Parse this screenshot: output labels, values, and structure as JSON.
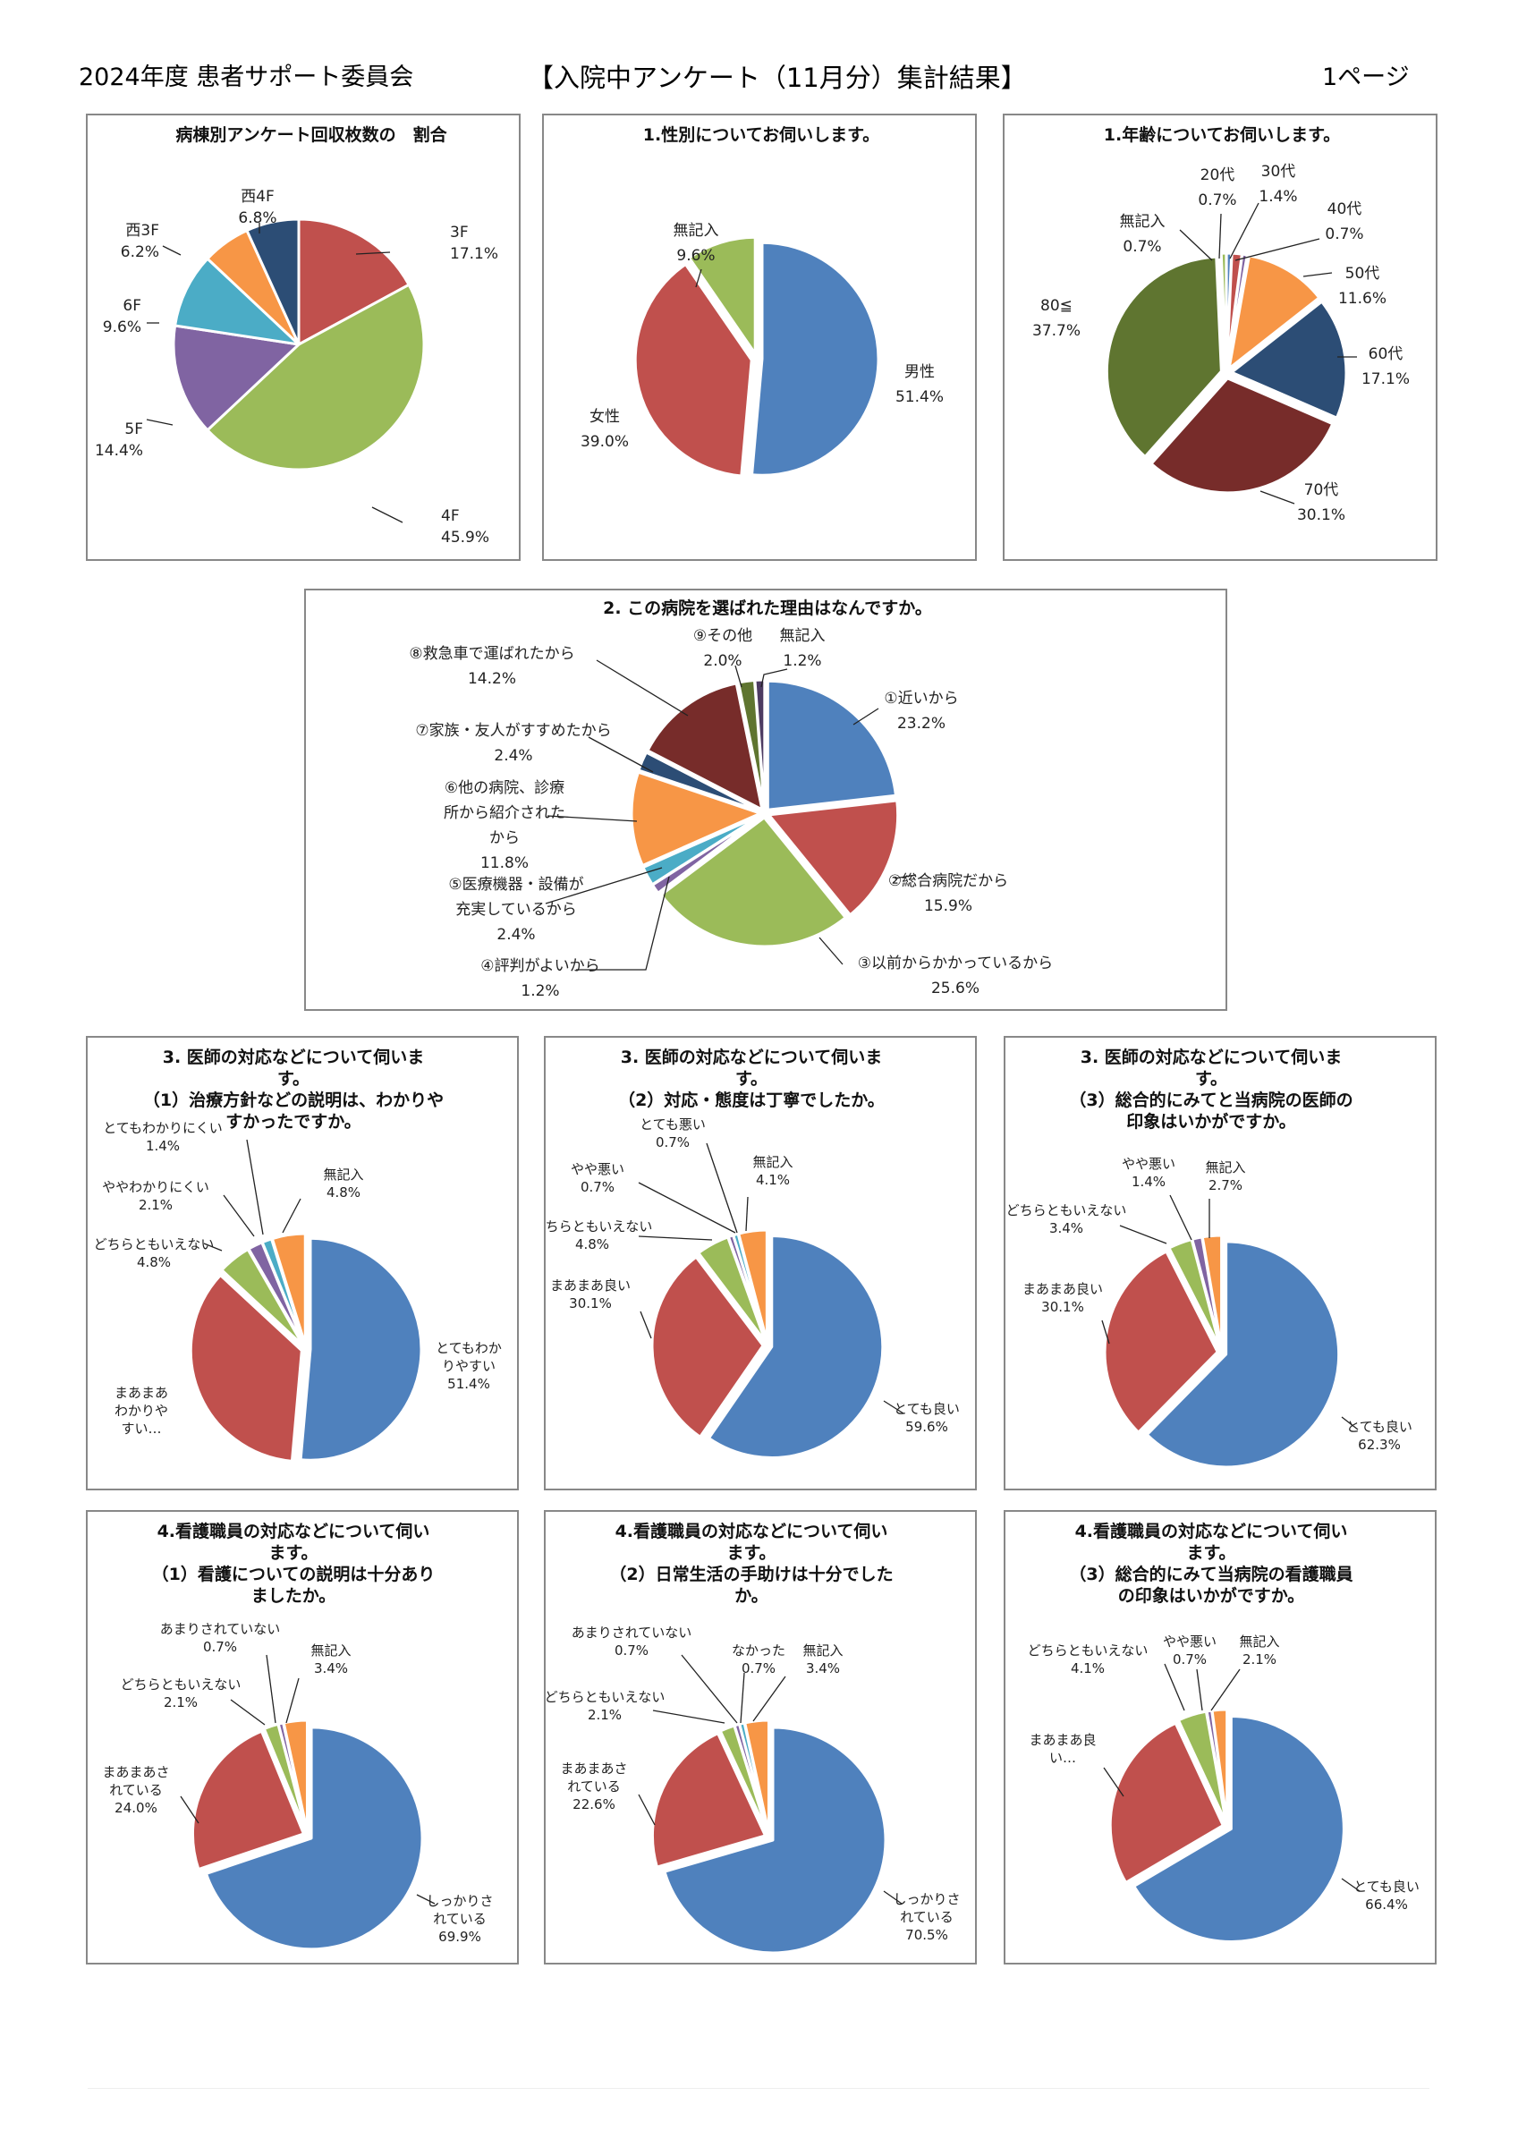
{
  "header": {
    "left": "2024年度 患者サポート委員会",
    "center": "【入院中アンケート（11月分）集計結果】",
    "right": "1ページ"
  },
  "colors": [
    "#4F81BD",
    "#C0504D",
    "#9BBB59",
    "#8064A2",
    "#4BACC6",
    "#F79646",
    "#2C4D75",
    "#772C2A",
    "#5F7530"
  ],
  "chart_data": [
    {
      "type": "pie",
      "title": [
        "病棟別アンケート回収枚数の　割合"
      ],
      "slices": [
        {
          "label": [
            "3F"
          ],
          "value": 17.1,
          "pct": "17.1%",
          "color": "#C0504D"
        },
        {
          "label": [
            "4F"
          ],
          "value": 45.9,
          "pct": "45.9%",
          "color": "#9BBB59"
        },
        {
          "label": [
            "5F"
          ],
          "value": 14.4,
          "pct": "14.4%",
          "color": "#8064A2"
        },
        {
          "label": [
            "6F"
          ],
          "value": 9.6,
          "pct": "9.6%",
          "color": "#4BACC6"
        },
        {
          "label": [
            "西3F"
          ],
          "value": 6.2,
          "pct": "6.2%",
          "color": "#F79646"
        },
        {
          "label": [
            "西4F"
          ],
          "value": 6.8,
          "pct": "6.8%",
          "color": "#2C4D75"
        }
      ]
    },
    {
      "type": "pie",
      "title": [
        "1.性別についてお伺いします。"
      ],
      "slices": [
        {
          "label": [
            "男性"
          ],
          "value": 51.4,
          "pct": "51.4%",
          "color": "#4F81BD"
        },
        {
          "label": [
            "女性"
          ],
          "value": 39.0,
          "pct": "39.0%",
          "color": "#C0504D"
        },
        {
          "label": [
            "無記入"
          ],
          "value": 9.6,
          "pct": "9.6%",
          "color": "#9BBB59"
        }
      ]
    },
    {
      "type": "pie",
      "title": [
        "1.年齢についてお伺いします。"
      ],
      "slices": [
        {
          "label": [
            "20代"
          ],
          "value": 0.7,
          "pct": "0.7%",
          "color": "#4F81BD"
        },
        {
          "label": [
            "30代"
          ],
          "value": 1.4,
          "pct": "1.4%",
          "color": "#C0504D"
        },
        {
          "label": [
            "40代"
          ],
          "value": 0.7,
          "pct": "0.7%",
          "color": "#8064A2"
        },
        {
          "label": [
            "50代"
          ],
          "value": 11.6,
          "pct": "11.6%",
          "color": "#F79646"
        },
        {
          "label": [
            "60代"
          ],
          "value": 17.1,
          "pct": "17.1%",
          "color": "#2C4D75"
        },
        {
          "label": [
            "70代"
          ],
          "value": 30.1,
          "pct": "30.1%",
          "color": "#772C2A"
        },
        {
          "label": [
            "80≦"
          ],
          "value": 37.7,
          "pct": "37.7%",
          "color": "#5F7530"
        },
        {
          "label": [
            "無記入"
          ],
          "value": 0.7,
          "pct": "0.7%",
          "color": "#9BBB59"
        }
      ]
    },
    {
      "type": "pie",
      "title": [
        "2. この病院を選ばれた理由はなんですか。"
      ],
      "slices": [
        {
          "label": [
            "①近いから"
          ],
          "value": 23.2,
          "pct": "23.2%",
          "color": "#4F81BD"
        },
        {
          "label": [
            "②総合病院だから"
          ],
          "value": 15.9,
          "pct": "15.9%",
          "color": "#C0504D"
        },
        {
          "label": [
            "③以前からかかっているから"
          ],
          "value": 25.6,
          "pct": "25.6%",
          "color": "#9BBB59"
        },
        {
          "label": [
            "④評判がよいから"
          ],
          "value": 1.2,
          "pct": "1.2%",
          "color": "#8064A2"
        },
        {
          "label": [
            "⑤医療機器・設備が",
            "充実しているから"
          ],
          "value": 2.4,
          "pct": "2.4%",
          "color": "#4BACC6"
        },
        {
          "label": [
            "⑥他の病院、診療",
            "所から紹介された",
            "から"
          ],
          "value": 11.8,
          "pct": "11.8%",
          "color": "#F79646"
        },
        {
          "label": [
            "⑦家族・友人がすすめたから"
          ],
          "value": 2.4,
          "pct": "2.4%",
          "color": "#2C4D75"
        },
        {
          "label": [
            "⑧救急車で運ばれたから"
          ],
          "value": 14.2,
          "pct": "14.2%",
          "color": "#772C2A"
        },
        {
          "label": [
            "⑨その他"
          ],
          "value": 2.0,
          "pct": "2.0%",
          "color": "#5F7530"
        },
        {
          "label": [
            "無記入"
          ],
          "value": 1.2,
          "pct": "1.2%",
          "color": "#4D3B62"
        }
      ]
    },
    {
      "type": "pie",
      "title": [
        "3. 医師の対応などについて伺いま",
        "す。",
        "（1）治療方針などの説明は、わかりや",
        "すかったですか。"
      ],
      "slices": [
        {
          "label": [
            "とてもわか",
            "りやすい"
          ],
          "value": 51.4,
          "pct": "51.4%",
          "color": "#4F81BD"
        },
        {
          "label": [
            "まあまあ",
            "わかりや",
            "すい…"
          ],
          "value": 35.5,
          "pct": "",
          "color": "#C0504D"
        },
        {
          "label": [
            "どちらともいえない"
          ],
          "value": 4.8,
          "pct": "4.8%",
          "color": "#9BBB59"
        },
        {
          "label": [
            "ややわかりにくい"
          ],
          "value": 2.1,
          "pct": "2.1%",
          "color": "#8064A2"
        },
        {
          "label": [
            "とてもわかりにくい"
          ],
          "value": 1.4,
          "pct": "1.4%",
          "color": "#4BACC6"
        },
        {
          "label": [
            "無記入"
          ],
          "value": 4.8,
          "pct": "4.8%",
          "color": "#F79646"
        }
      ]
    },
    {
      "type": "pie",
      "title": [
        "3. 医師の対応などについて伺いま",
        "す。",
        "（2）対応・態度は丁寧でしたか。"
      ],
      "slices": [
        {
          "label": [
            "とても良い"
          ],
          "value": 59.6,
          "pct": "59.6%",
          "color": "#4F81BD"
        },
        {
          "label": [
            "まあまあ良い"
          ],
          "value": 30.1,
          "pct": "30.1%",
          "color": "#C0504D"
        },
        {
          "label": [
            "どちらともいえない"
          ],
          "value": 4.8,
          "pct": "4.8%",
          "color": "#9BBB59"
        },
        {
          "label": [
            "やや悪い"
          ],
          "value": 0.7,
          "pct": "0.7%",
          "color": "#8064A2"
        },
        {
          "label": [
            "とても悪い"
          ],
          "value": 0.7,
          "pct": "0.7%",
          "color": "#4BACC6"
        },
        {
          "label": [
            "無記入"
          ],
          "value": 4.1,
          "pct": "4.1%",
          "color": "#F79646"
        }
      ]
    },
    {
      "type": "pie",
      "title": [
        "3. 医師の対応などについて伺いま",
        "す。",
        "（3）総合的にみてと当病院の医師の",
        "印象はいかがですか。"
      ],
      "slices": [
        {
          "label": [
            "とても良い"
          ],
          "value": 62.3,
          "pct": "62.3%",
          "color": "#4F81BD"
        },
        {
          "label": [
            "まあまあ良い"
          ],
          "value": 30.1,
          "pct": "30.1%",
          "color": "#C0504D"
        },
        {
          "label": [
            "どちらともいえない"
          ],
          "value": 3.4,
          "pct": "3.4%",
          "color": "#9BBB59"
        },
        {
          "label": [
            "やや悪い"
          ],
          "value": 1.4,
          "pct": "1.4%",
          "color": "#8064A2"
        },
        {
          "label": [
            "無記入"
          ],
          "value": 2.7,
          "pct": "2.7%",
          "color": "#F79646"
        }
      ]
    },
    {
      "type": "pie",
      "title": [
        "4.看護職員の対応などについて伺い",
        "ます。",
        "（1）看護についての説明は十分あり",
        "ましたか。"
      ],
      "slices": [
        {
          "label": [
            "しっかりさ",
            "れている"
          ],
          "value": 69.9,
          "pct": "69.9%",
          "color": "#4F81BD"
        },
        {
          "label": [
            "まあまあさ",
            "れている"
          ],
          "value": 24.0,
          "pct": "24.0%",
          "color": "#C0504D"
        },
        {
          "label": [
            "どちらともいえない"
          ],
          "value": 2.1,
          "pct": "2.1%",
          "color": "#9BBB59"
        },
        {
          "label": [
            "あまりされていない"
          ],
          "value": 0.7,
          "pct": "0.7%",
          "color": "#8064A2"
        },
        {
          "label": [
            "無記入"
          ],
          "value": 3.4,
          "pct": "3.4%",
          "color": "#F79646"
        }
      ]
    },
    {
      "type": "pie",
      "title": [
        "4.看護職員の対応などについて伺い",
        "ます。",
        "（2）日常生活の手助けは十分でした",
        "か。"
      ],
      "slices": [
        {
          "label": [
            "しっかりさ",
            "れている"
          ],
          "value": 70.5,
          "pct": "70.5%",
          "color": "#4F81BD"
        },
        {
          "label": [
            "まあまあさ",
            "れている"
          ],
          "value": 22.6,
          "pct": "22.6%",
          "color": "#C0504D"
        },
        {
          "label": [
            "どちらともいえない"
          ],
          "value": 2.1,
          "pct": "2.1%",
          "color": "#9BBB59"
        },
        {
          "label": [
            "あまりされていない"
          ],
          "value": 0.7,
          "pct": "0.7%",
          "color": "#8064A2"
        },
        {
          "label": [
            "なかった"
          ],
          "value": 0.7,
          "pct": "0.7%",
          "color": "#4BACC6"
        },
        {
          "label": [
            "無記入"
          ],
          "value": 3.4,
          "pct": "3.4%",
          "color": "#F79646"
        }
      ]
    },
    {
      "type": "pie",
      "title": [
        "4.看護職員の対応などについて伺い",
        "ます。",
        "（3）総合的にみて当病院の看護職員",
        "の印象はいかがですか。"
      ],
      "slices": [
        {
          "label": [
            "とても良い"
          ],
          "value": 66.4,
          "pct": "66.4%",
          "color": "#4F81BD"
        },
        {
          "label": [
            "まあまあ良",
            "い…"
          ],
          "value": 26.5,
          "pct": "",
          "color": "#C0504D"
        },
        {
          "label": [
            "どちらともいえない"
          ],
          "value": 4.1,
          "pct": "4.1%",
          "color": "#9BBB59"
        },
        {
          "label": [
            "やや悪い"
          ],
          "value": 0.7,
          "pct": "0.7%",
          "color": "#8064A2"
        },
        {
          "label": [
            "無記入"
          ],
          "value": 2.1,
          "pct": "2.1%",
          "color": "#F79646"
        }
      ]
    }
  ]
}
